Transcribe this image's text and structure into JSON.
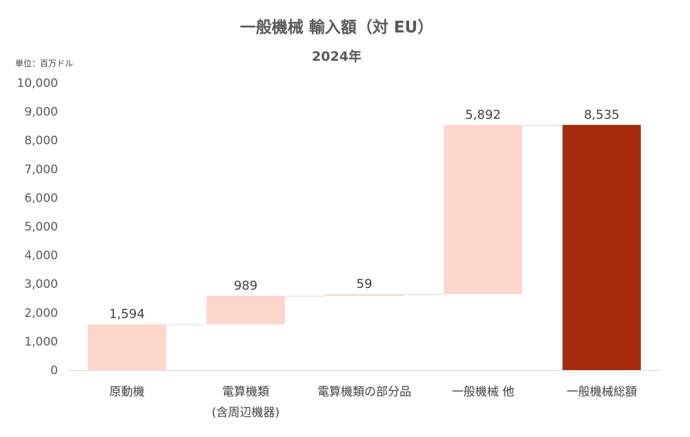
{
  "chart_data": {
    "type": "bar",
    "subtype": "waterfall",
    "title": "一般機械 輸入額（対 EU）",
    "subtitle": "2024年",
    "unit_label": "単位：百万ドル",
    "categories": [
      [
        "原動機"
      ],
      [
        "電算機類",
        "(含周辺機器)"
      ],
      [
        "電算機類の部分品"
      ],
      [
        "一般機械 他"
      ],
      [
        "一般機械総額"
      ]
    ],
    "values": [
      1594,
      989,
      59,
      5892,
      8535
    ],
    "value_labels": [
      "1,594",
      "989",
      "59",
      "5,892",
      "8,535"
    ],
    "is_total": [
      false,
      false,
      false,
      false,
      true
    ],
    "ylim": [
      0,
      10000
    ],
    "yticks": [
      0,
      1000,
      2000,
      3000,
      4000,
      5000,
      6000,
      7000,
      8000,
      9000,
      10000
    ],
    "ytick_labels": [
      "0",
      "1,000",
      "2,000",
      "3,000",
      "4,000",
      "5,000",
      "6,000",
      "7,000",
      "8,000",
      "9,000",
      "10,000"
    ],
    "grid": false,
    "legend": "none",
    "colors": {
      "increment": "#FCD5CB",
      "total": "#A52A0C",
      "connector": "#D9D9D9",
      "axis": "#D9D9D9"
    }
  }
}
